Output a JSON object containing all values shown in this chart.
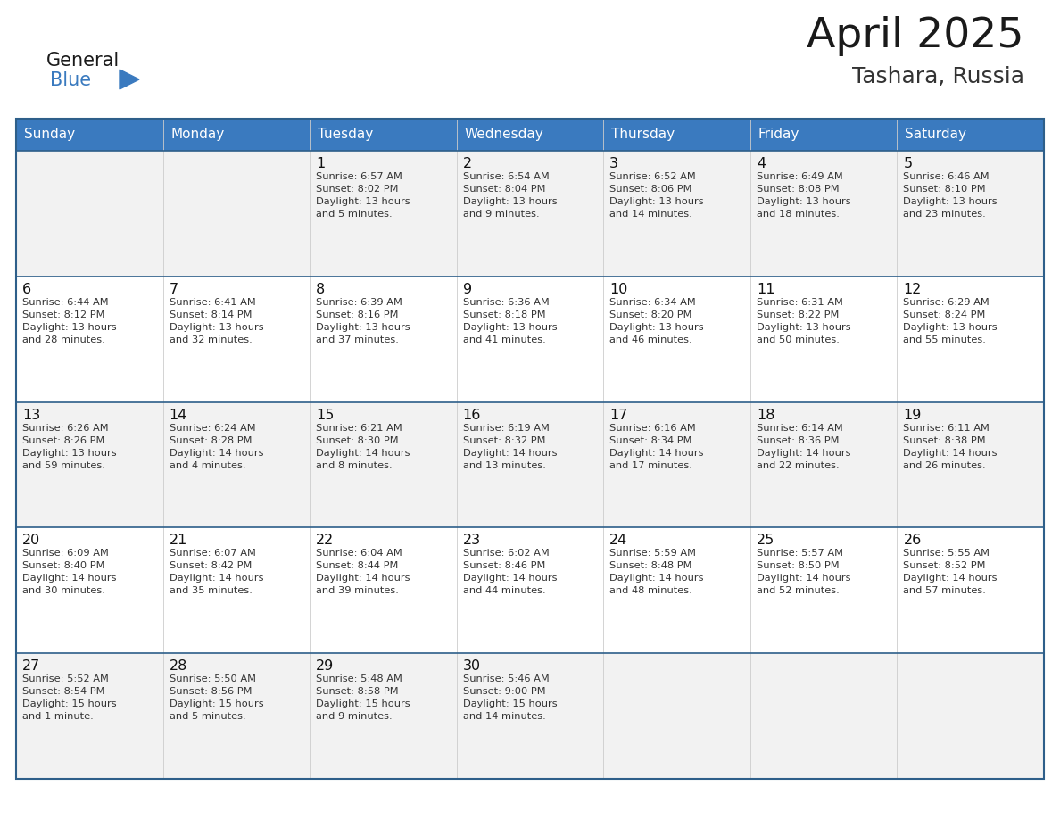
{
  "title": "April 2025",
  "subtitle": "Tashara, Russia",
  "header_color": "#3a7abf",
  "header_text_color": "#ffffff",
  "row_bg_odd": "#f2f2f2",
  "row_bg_even": "#ffffff",
  "border_color": "#2e5f8a",
  "text_color": "#333333",
  "day_num_color": "#222222",
  "days_of_week": [
    "Sunday",
    "Monday",
    "Tuesday",
    "Wednesday",
    "Thursday",
    "Friday",
    "Saturday"
  ],
  "weeks": [
    [
      {
        "day": "",
        "sunrise": "",
        "sunset": "",
        "daylight": ""
      },
      {
        "day": "",
        "sunrise": "",
        "sunset": "",
        "daylight": ""
      },
      {
        "day": "1",
        "sunrise": "Sunrise: 6:57 AM",
        "sunset": "Sunset: 8:02 PM",
        "daylight": "Daylight: 13 hours\nand 5 minutes."
      },
      {
        "day": "2",
        "sunrise": "Sunrise: 6:54 AM",
        "sunset": "Sunset: 8:04 PM",
        "daylight": "Daylight: 13 hours\nand 9 minutes."
      },
      {
        "day": "3",
        "sunrise": "Sunrise: 6:52 AM",
        "sunset": "Sunset: 8:06 PM",
        "daylight": "Daylight: 13 hours\nand 14 minutes."
      },
      {
        "day": "4",
        "sunrise": "Sunrise: 6:49 AM",
        "sunset": "Sunset: 8:08 PM",
        "daylight": "Daylight: 13 hours\nand 18 minutes."
      },
      {
        "day": "5",
        "sunrise": "Sunrise: 6:46 AM",
        "sunset": "Sunset: 8:10 PM",
        "daylight": "Daylight: 13 hours\nand 23 minutes."
      }
    ],
    [
      {
        "day": "6",
        "sunrise": "Sunrise: 6:44 AM",
        "sunset": "Sunset: 8:12 PM",
        "daylight": "Daylight: 13 hours\nand 28 minutes."
      },
      {
        "day": "7",
        "sunrise": "Sunrise: 6:41 AM",
        "sunset": "Sunset: 8:14 PM",
        "daylight": "Daylight: 13 hours\nand 32 minutes."
      },
      {
        "day": "8",
        "sunrise": "Sunrise: 6:39 AM",
        "sunset": "Sunset: 8:16 PM",
        "daylight": "Daylight: 13 hours\nand 37 minutes."
      },
      {
        "day": "9",
        "sunrise": "Sunrise: 6:36 AM",
        "sunset": "Sunset: 8:18 PM",
        "daylight": "Daylight: 13 hours\nand 41 minutes."
      },
      {
        "day": "10",
        "sunrise": "Sunrise: 6:34 AM",
        "sunset": "Sunset: 8:20 PM",
        "daylight": "Daylight: 13 hours\nand 46 minutes."
      },
      {
        "day": "11",
        "sunrise": "Sunrise: 6:31 AM",
        "sunset": "Sunset: 8:22 PM",
        "daylight": "Daylight: 13 hours\nand 50 minutes."
      },
      {
        "day": "12",
        "sunrise": "Sunrise: 6:29 AM",
        "sunset": "Sunset: 8:24 PM",
        "daylight": "Daylight: 13 hours\nand 55 minutes."
      }
    ],
    [
      {
        "day": "13",
        "sunrise": "Sunrise: 6:26 AM",
        "sunset": "Sunset: 8:26 PM",
        "daylight": "Daylight: 13 hours\nand 59 minutes."
      },
      {
        "day": "14",
        "sunrise": "Sunrise: 6:24 AM",
        "sunset": "Sunset: 8:28 PM",
        "daylight": "Daylight: 14 hours\nand 4 minutes."
      },
      {
        "day": "15",
        "sunrise": "Sunrise: 6:21 AM",
        "sunset": "Sunset: 8:30 PM",
        "daylight": "Daylight: 14 hours\nand 8 minutes."
      },
      {
        "day": "16",
        "sunrise": "Sunrise: 6:19 AM",
        "sunset": "Sunset: 8:32 PM",
        "daylight": "Daylight: 14 hours\nand 13 minutes."
      },
      {
        "day": "17",
        "sunrise": "Sunrise: 6:16 AM",
        "sunset": "Sunset: 8:34 PM",
        "daylight": "Daylight: 14 hours\nand 17 minutes."
      },
      {
        "day": "18",
        "sunrise": "Sunrise: 6:14 AM",
        "sunset": "Sunset: 8:36 PM",
        "daylight": "Daylight: 14 hours\nand 22 minutes."
      },
      {
        "day": "19",
        "sunrise": "Sunrise: 6:11 AM",
        "sunset": "Sunset: 8:38 PM",
        "daylight": "Daylight: 14 hours\nand 26 minutes."
      }
    ],
    [
      {
        "day": "20",
        "sunrise": "Sunrise: 6:09 AM",
        "sunset": "Sunset: 8:40 PM",
        "daylight": "Daylight: 14 hours\nand 30 minutes."
      },
      {
        "day": "21",
        "sunrise": "Sunrise: 6:07 AM",
        "sunset": "Sunset: 8:42 PM",
        "daylight": "Daylight: 14 hours\nand 35 minutes."
      },
      {
        "day": "22",
        "sunrise": "Sunrise: 6:04 AM",
        "sunset": "Sunset: 8:44 PM",
        "daylight": "Daylight: 14 hours\nand 39 minutes."
      },
      {
        "day": "23",
        "sunrise": "Sunrise: 6:02 AM",
        "sunset": "Sunset: 8:46 PM",
        "daylight": "Daylight: 14 hours\nand 44 minutes."
      },
      {
        "day": "24",
        "sunrise": "Sunrise: 5:59 AM",
        "sunset": "Sunset: 8:48 PM",
        "daylight": "Daylight: 14 hours\nand 48 minutes."
      },
      {
        "day": "25",
        "sunrise": "Sunrise: 5:57 AM",
        "sunset": "Sunset: 8:50 PM",
        "daylight": "Daylight: 14 hours\nand 52 minutes."
      },
      {
        "day": "26",
        "sunrise": "Sunrise: 5:55 AM",
        "sunset": "Sunset: 8:52 PM",
        "daylight": "Daylight: 14 hours\nand 57 minutes."
      }
    ],
    [
      {
        "day": "27",
        "sunrise": "Sunrise: 5:52 AM",
        "sunset": "Sunset: 8:54 PM",
        "daylight": "Daylight: 15 hours\nand 1 minute."
      },
      {
        "day": "28",
        "sunrise": "Sunrise: 5:50 AM",
        "sunset": "Sunset: 8:56 PM",
        "daylight": "Daylight: 15 hours\nand 5 minutes."
      },
      {
        "day": "29",
        "sunrise": "Sunrise: 5:48 AM",
        "sunset": "Sunset: 8:58 PM",
        "daylight": "Daylight: 15 hours\nand 9 minutes."
      },
      {
        "day": "30",
        "sunrise": "Sunrise: 5:46 AM",
        "sunset": "Sunset: 9:00 PM",
        "daylight": "Daylight: 15 hours\nand 14 minutes."
      },
      {
        "day": "",
        "sunrise": "",
        "sunset": "",
        "daylight": ""
      },
      {
        "day": "",
        "sunrise": "",
        "sunset": "",
        "daylight": ""
      },
      {
        "day": "",
        "sunrise": "",
        "sunset": "",
        "daylight": ""
      }
    ]
  ]
}
